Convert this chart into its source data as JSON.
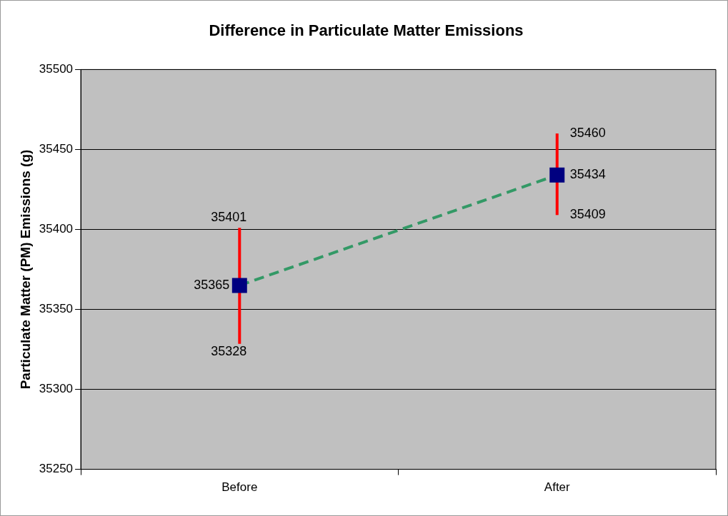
{
  "chart_data": {
    "type": "line",
    "title": "Difference in Particulate Matter Emissions",
    "ylabel": "Particulate Matter (PM) Emissions (g)",
    "categories": [
      "Before",
      "After"
    ],
    "series": [
      {
        "color": "#339966",
        "values": [
          35365,
          35434
        ],
        "errors": [
          [
            35328,
            35401
          ],
          [
            35409,
            35460
          ]
        ]
      }
    ],
    "ylim": [
      35250,
      35500
    ],
    "yticks": [
      35250,
      35300,
      35350,
      35400,
      35450,
      35500
    ],
    "grid": "y",
    "legend": false,
    "marker": "square",
    "line_style": "dashed",
    "data_labels": true,
    "annotations": [
      {
        "text": "35401",
        "x": "Before",
        "y": 35401
      },
      {
        "text": "35328",
        "x": "Before",
        "y": 35328
      },
      {
        "text": "35460",
        "x": "After",
        "y": 35460
      },
      {
        "text": "35409",
        "x": "After",
        "y": 35409
      }
    ]
  }
}
